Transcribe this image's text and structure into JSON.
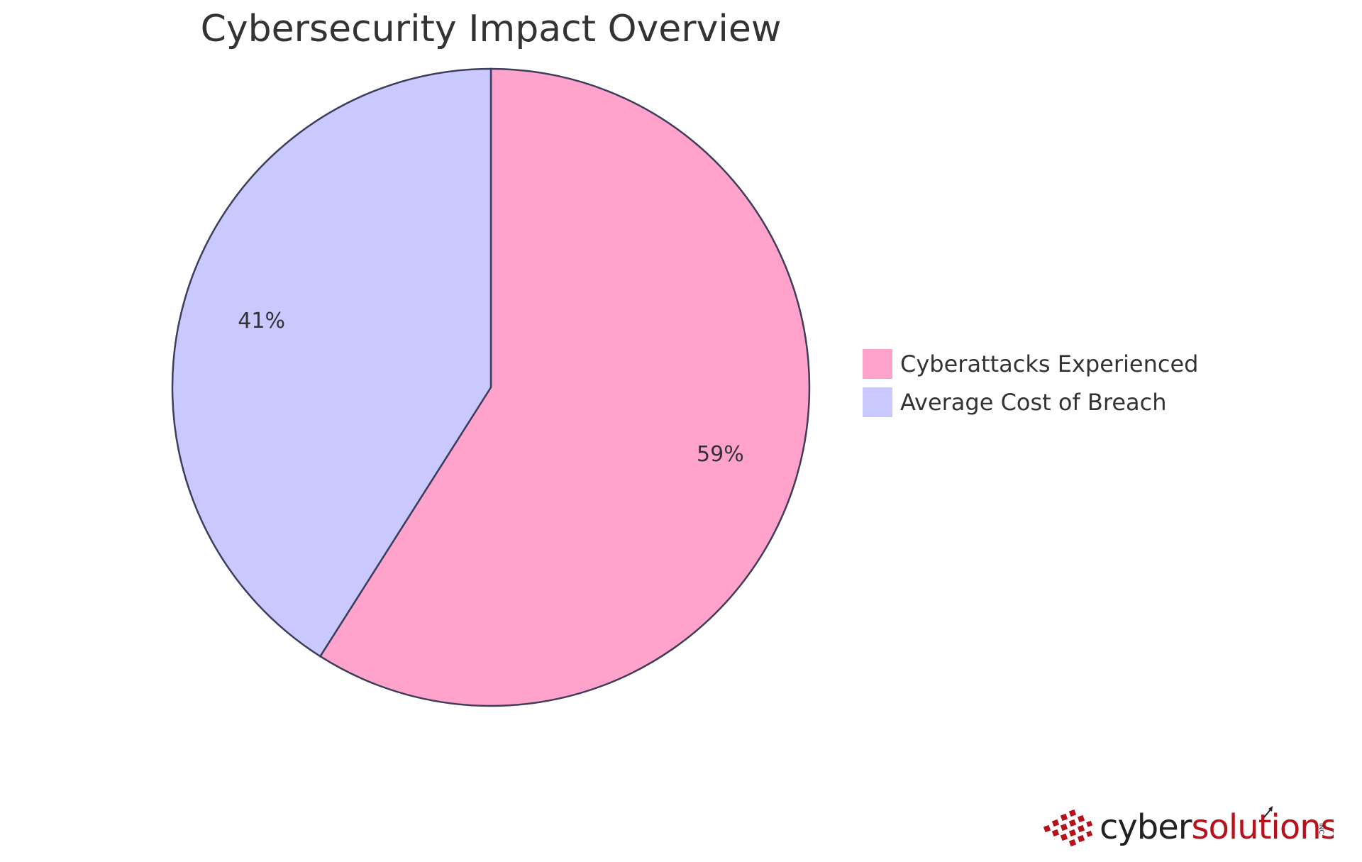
{
  "chart_data": {
    "type": "pie",
    "title": "Cybersecurity Impact Overview",
    "slices": [
      {
        "label": "Cyberattacks Experienced",
        "value": 59,
        "display": "59%",
        "color": "#FFA3CC"
      },
      {
        "label": "Average Cost of Breach",
        "value": 41,
        "display": "41%",
        "color": "#C9C8FF"
      }
    ],
    "stroke_color": "#3D3D5C",
    "legend_position": "right"
  },
  "logo": {
    "part1": "cyber",
    "part2": "solutions",
    "suffix": "INC",
    "color_dark": "#222222",
    "color_red": "#B5121B"
  }
}
